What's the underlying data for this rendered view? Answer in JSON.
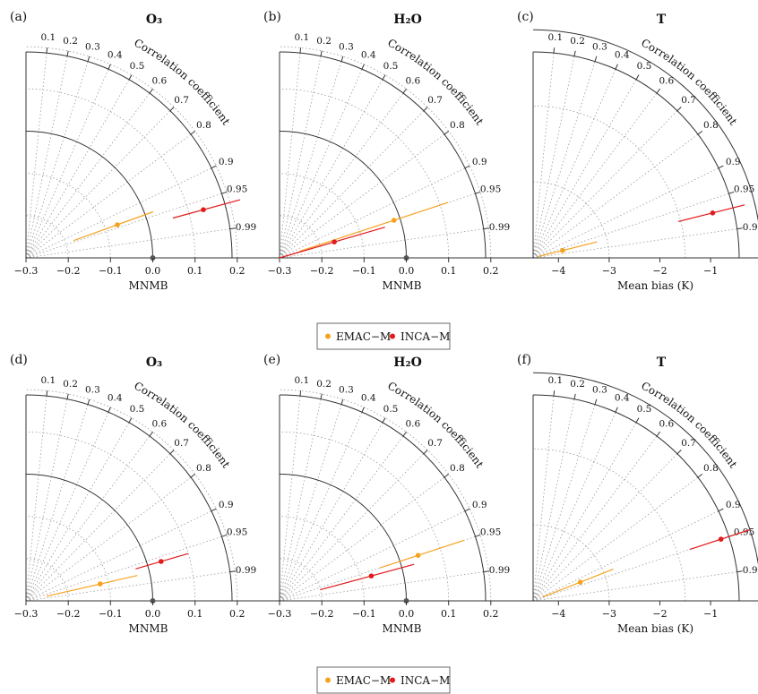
{
  "colors": {
    "EMAC-M": "#f5a31f",
    "INCA-M": "#e31a1c",
    "frame": "#333333",
    "grid": "#9a9a9a"
  },
  "legend": {
    "items": [
      {
        "label": "EMAC−M",
        "key": "EMAC-M"
      },
      {
        "label": "INCA−M",
        "key": "INCA-M"
      }
    ]
  },
  "chart_data": [
    {
      "type": "scatter",
      "panel": "(a)",
      "title": "O₃",
      "xlabel": "MNMB",
      "curve_label": "Correlation coefficient",
      "x_range": [
        -0.3,
        0.3
      ],
      "x_ticks": [
        -0.3,
        -0.2,
        -0.1,
        0.0,
        0.1,
        0.2
      ],
      "x_tick_labels": [
        "−0.3",
        "−0.2",
        "−0.1",
        "0.0",
        "0.1",
        "0.2"
      ],
      "r_ticks": [
        0.1,
        0.2,
        0.3,
        0.4,
        0.5,
        0.6,
        0.7,
        0.8,
        0.9,
        0.95,
        0.99
      ],
      "r_tick_labels": [
        "0.1",
        "0.2",
        "0.3",
        "0.4",
        "0.5",
        "0.6",
        "0.7",
        "0.8",
        "0.9",
        "0.95",
        "0.99"
      ],
      "ref_radius": 0.3,
      "grid_rings": [
        0.1,
        0.2,
        0.4,
        0.5
      ],
      "series": [
        {
          "name": "EMAC−M",
          "key": "EMAC-M",
          "x": -0.07,
          "r": 0.94,
          "range": [
            -0.18,
            0.02
          ]
        },
        {
          "name": "INCA−M",
          "key": "INCA-M",
          "x": 0.135,
          "r": 0.965,
          "range": [
            0.06,
            0.225
          ]
        }
      ]
    },
    {
      "type": "scatter",
      "panel": "(b)",
      "title": "H₂O",
      "xlabel": "MNMB",
      "curve_label": "Correlation coefficient",
      "x_range": [
        -0.3,
        0.3
      ],
      "x_ticks": [
        -0.3,
        -0.2,
        -0.1,
        0.0,
        0.1,
        0.2
      ],
      "x_tick_labels": [
        "−0.3",
        "−0.2",
        "−0.1",
        "0.0",
        "0.1",
        "0.2"
      ],
      "r_ticks": [
        0.1,
        0.2,
        0.3,
        0.4,
        0.5,
        0.6,
        0.7,
        0.8,
        0.9,
        0.95,
        0.99
      ],
      "r_tick_labels": [
        "0.1",
        "0.2",
        "0.3",
        "0.4",
        "0.5",
        "0.6",
        "0.7",
        "0.8",
        "0.9",
        "0.95",
        "0.99"
      ],
      "ref_radius": 0.3,
      "grid_rings": [
        0.1,
        0.2,
        0.4,
        0.5
      ],
      "series": [
        {
          "name": "EMAC−M",
          "key": "EMAC-M",
          "x": -0.015,
          "r": 0.95,
          "range": [
            -0.25,
            0.12
          ]
        },
        {
          "name": "INCA−M",
          "key": "INCA-M",
          "x": -0.165,
          "r": 0.96,
          "range": [
            -0.3,
            -0.04
          ]
        }
      ]
    },
    {
      "type": "scatter",
      "panel": "(c)",
      "title": "T",
      "xlabel": "Mean bias (K)",
      "curve_label": "Correlation coefficient",
      "x_range": [
        -4.5,
        0.5
      ],
      "x_ticks": [
        -4,
        -3,
        -2,
        -1,
        0
      ],
      "x_tick_labels": [
        "−4",
        "−3",
        "−2",
        "−1",
        "0"
      ],
      "r_ticks": [
        0.1,
        0.2,
        0.3,
        0.4,
        0.5,
        0.6,
        0.7,
        0.8,
        0.9,
        0.95,
        0.99
      ],
      "r_tick_labels": [
        "0.1",
        "0.2",
        "0.3",
        "0.4",
        "0.5",
        "0.6",
        "0.7",
        "0.8",
        "0.9",
        "0.95",
        "0.99"
      ],
      "ref_radius": 4.5,
      "grid_rings": [
        1.5,
        3.0
      ],
      "series": [
        {
          "name": "EMAC−M",
          "key": "EMAC-M",
          "x": -3.9,
          "r": 0.97,
          "range": [
            -4.4,
            -3.2
          ]
        },
        {
          "name": "INCA−M",
          "key": "INCA-M",
          "x": -0.85,
          "r": 0.97,
          "range": [
            -1.55,
            -0.2
          ]
        }
      ]
    },
    {
      "type": "scatter",
      "panel": "(d)",
      "title": "O₃",
      "xlabel": "MNMB",
      "curve_label": "Correlation coefficient",
      "x_range": [
        -0.3,
        0.3
      ],
      "x_ticks": [
        -0.3,
        -0.2,
        -0.1,
        0.0,
        0.1,
        0.2
      ],
      "x_tick_labels": [
        "−0.3",
        "−0.2",
        "−0.1",
        "0.0",
        "0.1",
        "0.2"
      ],
      "r_ticks": [
        0.1,
        0.2,
        0.3,
        0.4,
        0.5,
        0.6,
        0.7,
        0.8,
        0.9,
        0.95,
        0.99
      ],
      "r_tick_labels": [
        "0.1",
        "0.2",
        "0.3",
        "0.4",
        "0.5",
        "0.6",
        "0.7",
        "0.8",
        "0.9",
        "0.95",
        "0.99"
      ],
      "ref_radius": 0.3,
      "grid_rings": [
        0.1,
        0.2,
        0.4,
        0.5
      ],
      "series": [
        {
          "name": "EMAC−M",
          "key": "EMAC-M",
          "x": -0.12,
          "r": 0.975,
          "range": [
            -0.25,
            -0.03
          ]
        },
        {
          "name": "INCA−M",
          "key": "INCA-M",
          "x": 0.033,
          "r": 0.96,
          "range": [
            -0.03,
            0.1
          ]
        }
      ]
    },
    {
      "type": "scatter",
      "panel": "(e)",
      "title": "H₂O",
      "xlabel": "MNMB",
      "curve_label": "Correlation coefficient",
      "x_range": [
        -0.3,
        0.3
      ],
      "x_ticks": [
        -0.3,
        -0.2,
        -0.1,
        0.0,
        0.1,
        0.2
      ],
      "x_tick_labels": [
        "−0.3",
        "−0.2",
        "−0.1",
        "0.0",
        "0.1",
        "0.2"
      ],
      "r_ticks": [
        0.1,
        0.2,
        0.3,
        0.4,
        0.5,
        0.6,
        0.7,
        0.8,
        0.9,
        0.95,
        0.99
      ],
      "r_tick_labels": [
        "0.1",
        "0.2",
        "0.3",
        "0.4",
        "0.5",
        "0.6",
        "0.7",
        "0.8",
        "0.9",
        "0.95",
        "0.99"
      ],
      "ref_radius": 0.3,
      "grid_rings": [
        0.1,
        0.2,
        0.4,
        0.5
      ],
      "series": [
        {
          "name": "EMAC−M",
          "key": "EMAC-M",
          "x": 0.045,
          "r": 0.95,
          "range": [
            -0.05,
            0.16
          ]
        },
        {
          "name": "INCA−M",
          "key": "INCA-M",
          "x": -0.075,
          "r": 0.965,
          "range": [
            -0.2,
            0.03
          ]
        }
      ]
    },
    {
      "type": "scatter",
      "panel": "(f)",
      "title": "T",
      "xlabel": "Mean bias (K)",
      "curve_label": "Correlation coefficient",
      "x_range": [
        -4.5,
        0.5
      ],
      "x_ticks": [
        -4,
        -3,
        -2,
        -1,
        0
      ],
      "x_tick_labels": [
        "−4",
        "−3",
        "−2",
        "−1",
        "0"
      ],
      "r_ticks": [
        0.1,
        0.2,
        0.3,
        0.4,
        0.5,
        0.6,
        0.7,
        0.8,
        0.9,
        0.95,
        0.99
      ],
      "r_tick_labels": [
        "0.1",
        "0.2",
        "0.3",
        "0.4",
        "0.5",
        "0.6",
        "0.7",
        "0.8",
        "0.9",
        "0.95",
        "0.99"
      ],
      "ref_radius": 4.5,
      "grid_rings": [
        1.5,
        3.0
      ],
      "series": [
        {
          "name": "EMAC−M",
          "key": "EMAC-M",
          "x": -3.5,
          "r": 0.93,
          "range": [
            -4.3,
            -2.8
          ]
        },
        {
          "name": "INCA−M",
          "key": "INCA-M",
          "x": -0.6,
          "r": 0.95,
          "range": [
            -1.25,
            0.0
          ]
        }
      ]
    }
  ]
}
